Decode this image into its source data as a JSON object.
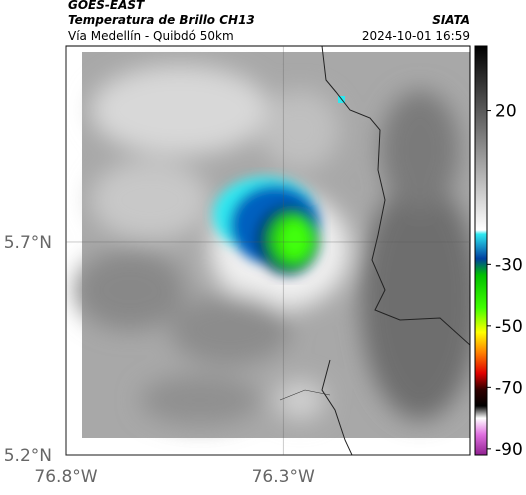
{
  "header": {
    "source": "GOES-EAST",
    "title": "Temperatura de Brillo CH13",
    "subtitle": "Vía Medellín - Quibdó 50km",
    "agency": "SIATA",
    "datetime": "2024-10-01 16:59"
  },
  "map": {
    "xlim": [
      -76.8,
      -75.87
    ],
    "ylim": [
      5.2,
      6.16
    ],
    "xticks": [
      {
        "value": -76.8,
        "label": "76.8°W"
      },
      {
        "value": -76.3,
        "label": "76.3°W"
      }
    ],
    "yticks": [
      {
        "value": 5.2,
        "label": "5.2°N"
      },
      {
        "value": 5.7,
        "label": "5.7°N"
      }
    ]
  },
  "colorbar": {
    "lim": [
      -92,
      41
    ],
    "ticks": [
      20,
      -30,
      -50,
      -70,
      -90
    ]
  }
}
